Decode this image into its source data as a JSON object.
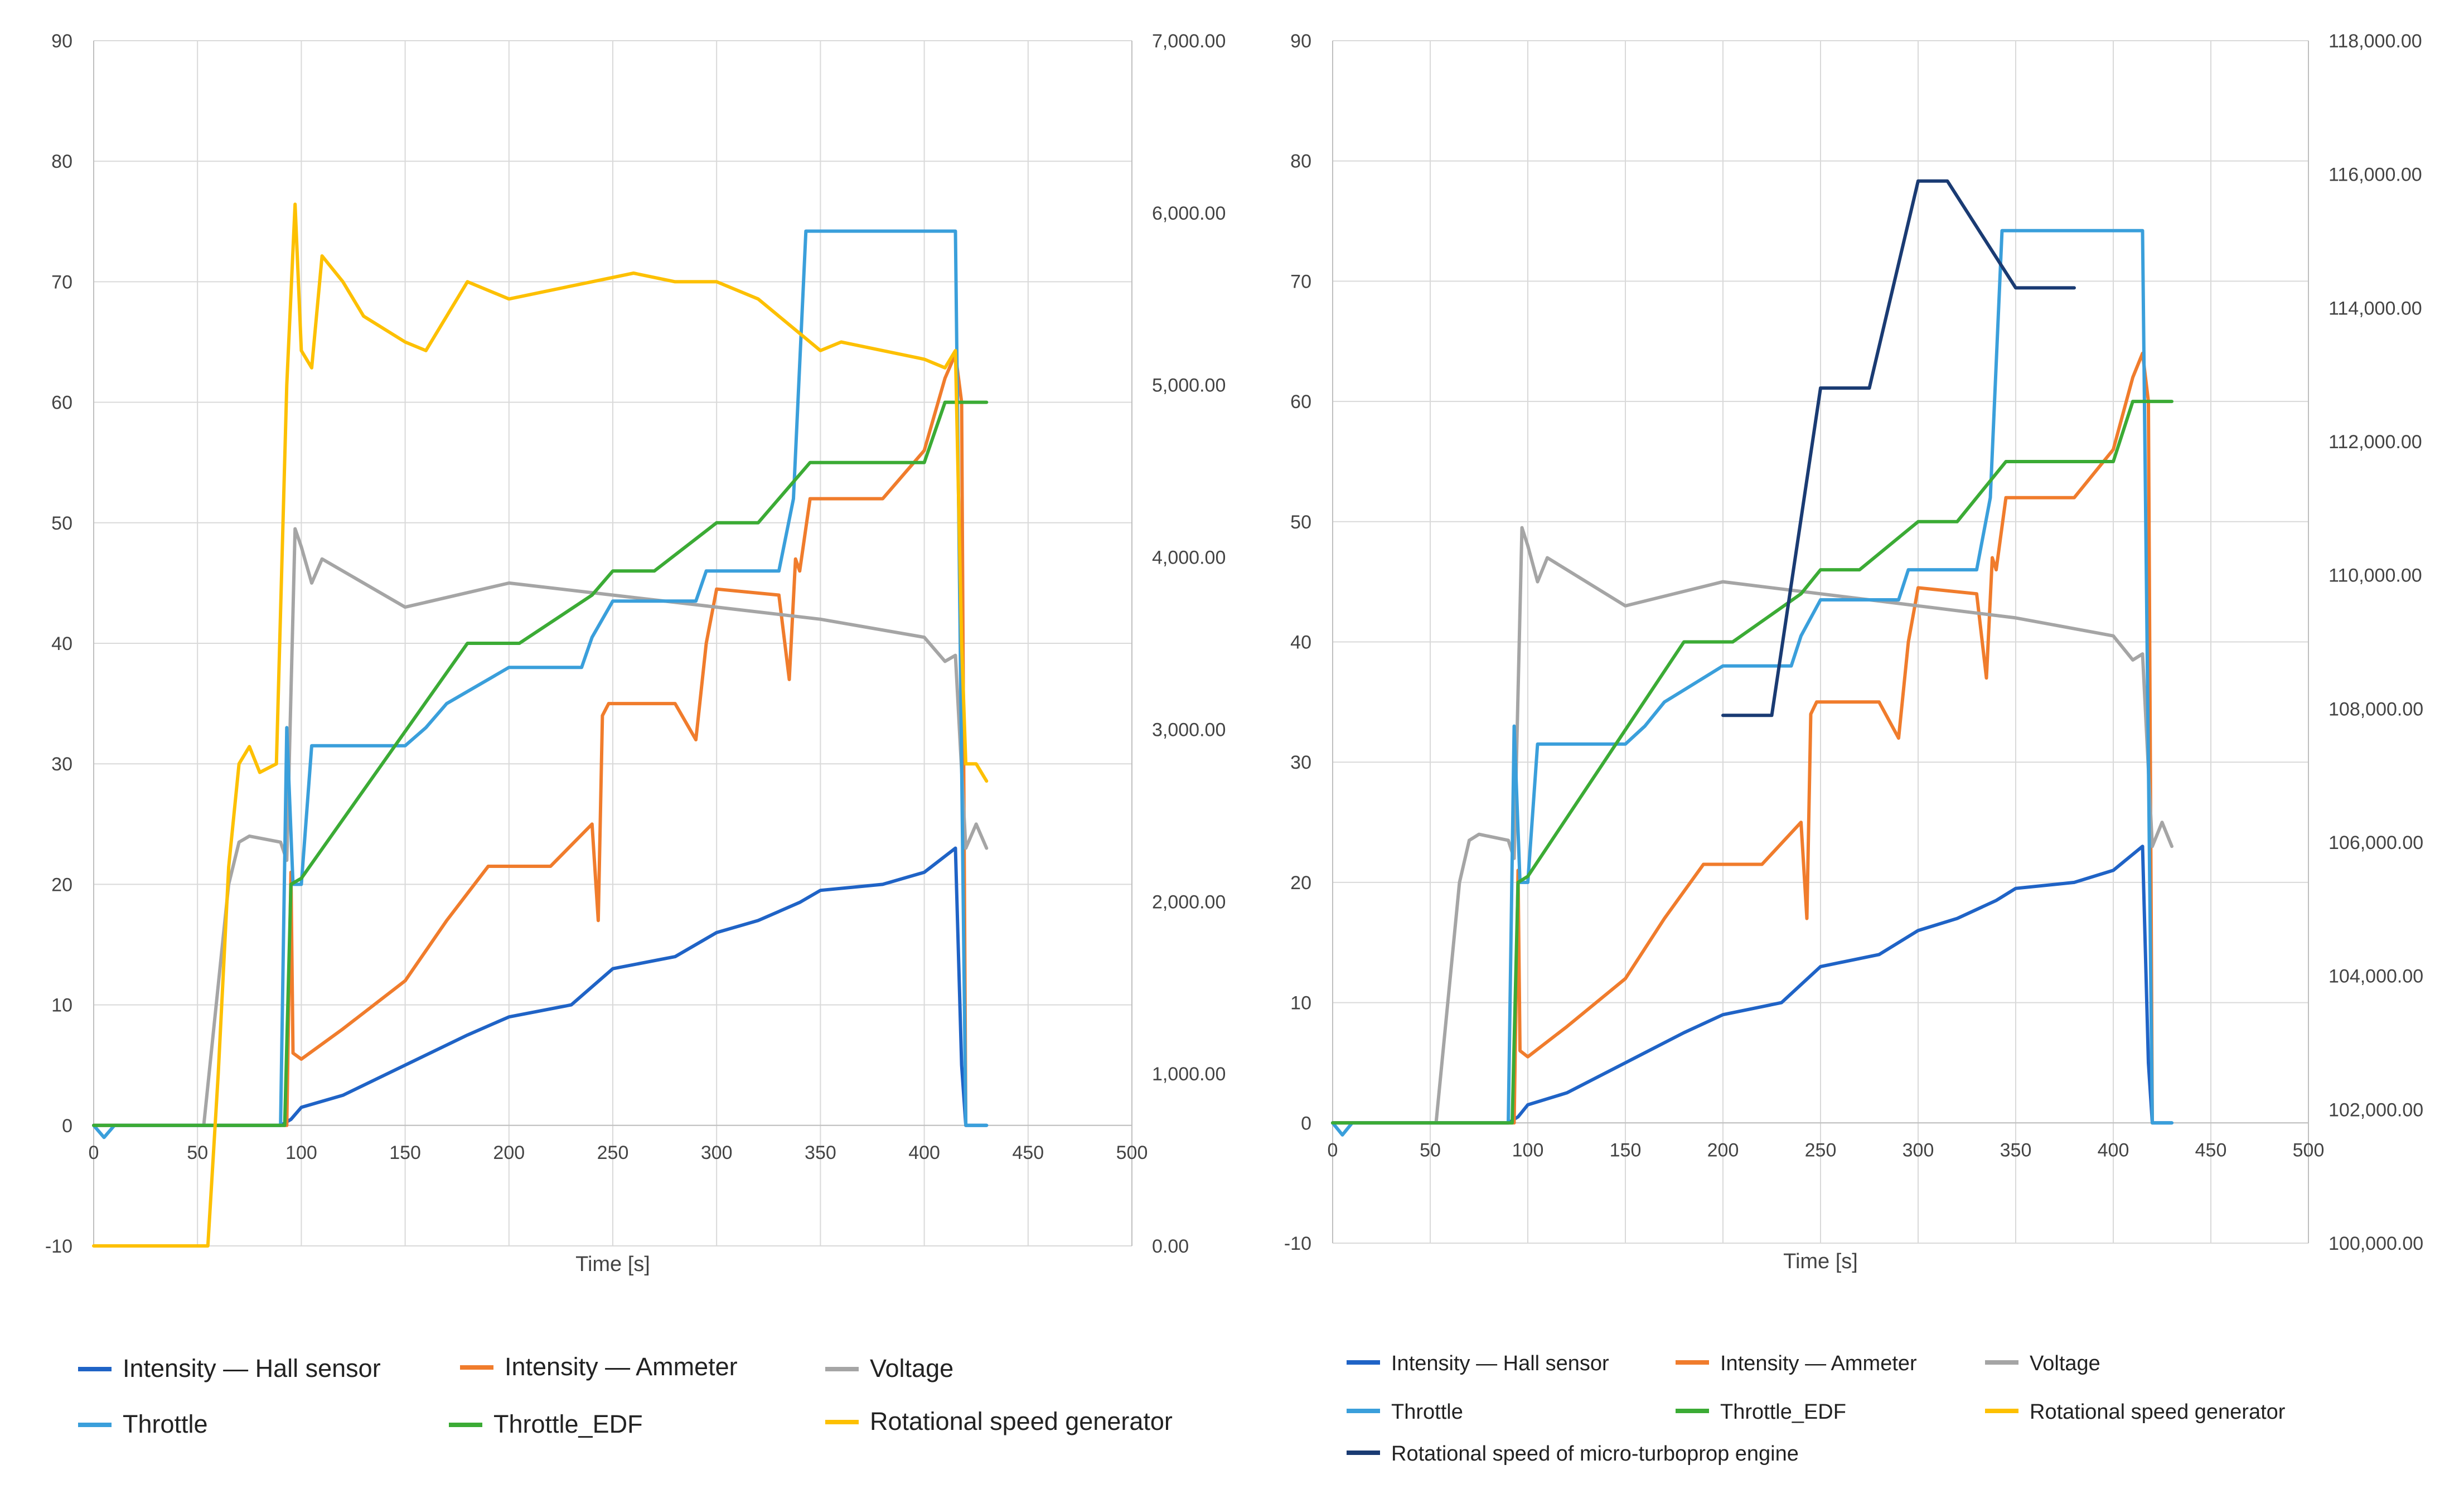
{
  "chart_data": [
    {
      "type": "line",
      "title": "",
      "xlabel": "Time [s]",
      "ylabel": "",
      "xlim": [
        0,
        500
      ],
      "ylim": [
        -10,
        90
      ],
      "y2lim": [
        0,
        7000
      ],
      "x_ticks": [
        "0",
        "50",
        "100",
        "150",
        "200",
        "250",
        "300",
        "350",
        "400",
        "450",
        "500"
      ],
      "y_ticks": [
        "-10",
        "0",
        "10",
        "20",
        "30",
        "40",
        "50",
        "60",
        "70",
        "80",
        "90"
      ],
      "y2_ticks": [
        "0.00",
        "1,000.00",
        "2,000.00",
        "3,000.00",
        "4,000.00",
        "5,000.00",
        "6,000.00",
        "7,000.00"
      ],
      "grid": true,
      "legend": [
        {
          "label": "Intensity — Hall sensor",
          "color": "#1f63c6"
        },
        {
          "label": "Intensity — Ammeter",
          "color": "#f07c2c"
        },
        {
          "label": "Voltage",
          "color": "#a5a5a5"
        },
        {
          "label": "Throttle",
          "color": "#3a9fdb"
        },
        {
          "label": "Throttle_EDF",
          "color": "#3bab35"
        },
        {
          "label": "Rotational speed generator",
          "color": "#fdc000"
        }
      ],
      "series": [
        {
          "name": "Intensity — Hall sensor",
          "axis": "y",
          "color": "#1f63c6",
          "x": [
            0,
            90,
            95,
            100,
            120,
            150,
            180,
            200,
            230,
            250,
            280,
            300,
            320,
            340,
            350,
            380,
            400,
            415,
            418,
            420,
            430
          ],
          "y": [
            0,
            0,
            0.5,
            1.5,
            2.5,
            5,
            7.5,
            9,
            10,
            13,
            14,
            16,
            17,
            18.5,
            19.5,
            20,
            21,
            23,
            5,
            0,
            0
          ]
        },
        {
          "name": "Intensity — Ammeter",
          "axis": "y",
          "color": "#f07c2c",
          "x": [
            0,
            93,
            95,
            96,
            100,
            120,
            150,
            170,
            190,
            220,
            240,
            243,
            245,
            248,
            250,
            280,
            290,
            295,
            300,
            330,
            335,
            338,
            340,
            345,
            380,
            400,
            405,
            410,
            415,
            418,
            420
          ],
          "y": [
            0,
            0,
            21,
            6,
            5.5,
            8,
            12,
            17,
            21.5,
            21.5,
            25,
            17,
            34,
            35,
            35,
            35,
            32,
            40,
            44.5,
            44,
            37,
            47,
            46,
            52,
            52,
            56,
            59,
            62,
            64,
            60,
            0
          ]
        },
        {
          "name": "Voltage",
          "axis": "y",
          "color": "#a5a5a5",
          "x": [
            0,
            53,
            65,
            70,
            75,
            90,
            93,
            97,
            100,
            105,
            110,
            150,
            200,
            250,
            300,
            350,
            400,
            410,
            415,
            420,
            425,
            430
          ],
          "y": [
            0,
            0,
            20,
            23.5,
            24,
            23.5,
            22,
            49.5,
            48,
            45,
            47,
            43,
            45,
            44,
            43,
            42,
            40.5,
            38.5,
            39,
            23,
            25,
            23
          ]
        },
        {
          "name": "Throttle",
          "axis": "y",
          "color": "#3a9fdb",
          "x": [
            0,
            5,
            10,
            90,
            93,
            96,
            100,
            105,
            150,
            160,
            170,
            180,
            190,
            200,
            235,
            240,
            250,
            290,
            295,
            330,
            337,
            343,
            415,
            418,
            420,
            430
          ],
          "y": [
            0,
            -1,
            0,
            0,
            33,
            20,
            20,
            31.5,
            31.5,
            33,
            35,
            36,
            37,
            38,
            38,
            40.5,
            43.5,
            43.5,
            46,
            46,
            52,
            74.2,
            74.2,
            30,
            0,
            0
          ]
        },
        {
          "name": "Throttle_EDF",
          "axis": "y",
          "color": "#3bab35",
          "x": [
            0,
            92,
            95,
            100,
            180,
            205,
            240,
            250,
            270,
            300,
            320,
            345,
            400,
            410,
            430
          ],
          "y": [
            0,
            0,
            20,
            20.5,
            40,
            40,
            44,
            46,
            46,
            50,
            50,
            55,
            55,
            60,
            60
          ]
        },
        {
          "name": "Rotational speed generator",
          "axis": "y2",
          "color": "#fdc000",
          "x": [
            0,
            55,
            60,
            65,
            70,
            75,
            80,
            88,
            93,
            97,
            100,
            105,
            110,
            120,
            130,
            150,
            160,
            180,
            200,
            220,
            240,
            260,
            280,
            300,
            320,
            340,
            350,
            360,
            380,
            400,
            410,
            415,
            418,
            420,
            425,
            430
          ],
          "y": [
            0,
            0,
            1000,
            2200,
            2800,
            2900,
            2750,
            2800,
            5000,
            6050,
            5200,
            5100,
            5750,
            5600,
            5400,
            5250,
            5200,
            5600,
            5500,
            5550,
            5600,
            5650,
            5600,
            5600,
            5500,
            5300,
            5200,
            5250,
            5200,
            5150,
            5100,
            5200,
            3500,
            2800,
            2800,
            2700
          ]
        }
      ]
    },
    {
      "type": "line",
      "title": "",
      "xlabel": "Time [s]",
      "ylabel": "",
      "xlim": [
        0,
        500
      ],
      "ylim": [
        -10,
        90
      ],
      "y2lim": [
        100000,
        118000
      ],
      "x_ticks": [
        "0",
        "50",
        "100",
        "150",
        "200",
        "250",
        "300",
        "350",
        "400",
        "450",
        "500"
      ],
      "y_ticks": [
        "-10",
        "0",
        "10",
        "20",
        "30",
        "40",
        "50",
        "60",
        "70",
        "80",
        "90"
      ],
      "y2_ticks": [
        "100,000.00",
        "102,000.00",
        "104,000.00",
        "106,000.00",
        "108,000.00",
        "110,000.00",
        "112,000.00",
        "114,000.00",
        "116,000.00",
        "118,000.00"
      ],
      "grid": true,
      "legend": [
        {
          "label": "Intensity — Hall sensor",
          "color": "#1f63c6"
        },
        {
          "label": "Intensity — Ammeter",
          "color": "#f07c2c"
        },
        {
          "label": "Voltage",
          "color": "#a5a5a5"
        },
        {
          "label": "Throttle",
          "color": "#3a9fdb"
        },
        {
          "label": "Throttle_EDF",
          "color": "#3bab35"
        },
        {
          "label": "Rotational speed generator",
          "color": "#fdc000"
        },
        {
          "label": "Rotational speed of micro-turboprop engine",
          "color": "#1a3b73"
        }
      ],
      "series": [
        {
          "name": "Intensity — Hall sensor",
          "axis": "y",
          "color": "#1f63c6",
          "x": [
            0,
            90,
            95,
            100,
            120,
            150,
            180,
            200,
            230,
            250,
            280,
            300,
            320,
            340,
            350,
            380,
            400,
            415,
            418,
            420,
            430
          ],
          "y": [
            0,
            0,
            0.5,
            1.5,
            2.5,
            5,
            7.5,
            9,
            10,
            13,
            14,
            16,
            17,
            18.5,
            19.5,
            20,
            21,
            23,
            5,
            0,
            0
          ]
        },
        {
          "name": "Intensity — Ammeter",
          "axis": "y",
          "color": "#f07c2c",
          "x": [
            0,
            93,
            95,
            96,
            100,
            120,
            150,
            170,
            190,
            220,
            240,
            243,
            245,
            248,
            250,
            280,
            290,
            295,
            300,
            330,
            335,
            338,
            340,
            345,
            380,
            400,
            405,
            410,
            415,
            418,
            420
          ],
          "y": [
            0,
            0,
            21,
            6,
            5.5,
            8,
            12,
            17,
            21.5,
            21.5,
            25,
            17,
            34,
            35,
            35,
            35,
            32,
            40,
            44.5,
            44,
            37,
            47,
            46,
            52,
            52,
            56,
            59,
            62,
            64,
            60,
            0
          ]
        },
        {
          "name": "Voltage",
          "axis": "y",
          "color": "#a5a5a5",
          "x": [
            0,
            53,
            65,
            70,
            75,
            90,
            93,
            97,
            100,
            105,
            110,
            150,
            200,
            250,
            300,
            350,
            400,
            410,
            415,
            420,
            425,
            430
          ],
          "y": [
            0,
            0,
            20,
            23.5,
            24,
            23.5,
            22,
            49.5,
            48,
            45,
            47,
            43,
            45,
            44,
            43,
            42,
            40.5,
            38.5,
            39,
            23,
            25,
            23
          ]
        },
        {
          "name": "Throttle",
          "axis": "y",
          "color": "#3a9fdb",
          "x": [
            0,
            5,
            10,
            90,
            93,
            96,
            100,
            105,
            150,
            160,
            170,
            180,
            190,
            200,
            235,
            240,
            250,
            290,
            295,
            330,
            337,
            343,
            415,
            418,
            420,
            430
          ],
          "y": [
            0,
            -1,
            0,
            0,
            33,
            20,
            20,
            31.5,
            31.5,
            33,
            35,
            36,
            37,
            38,
            38,
            40.5,
            43.5,
            43.5,
            46,
            46,
            52,
            74.2,
            74.2,
            30,
            0,
            0
          ]
        },
        {
          "name": "Throttle_EDF",
          "axis": "y",
          "color": "#3bab35",
          "x": [
            0,
            92,
            95,
            100,
            180,
            205,
            240,
            250,
            270,
            300,
            320,
            345,
            400,
            410,
            430
          ],
          "y": [
            0,
            0,
            20,
            20.5,
            40,
            40,
            44,
            46,
            46,
            50,
            50,
            55,
            55,
            60,
            60
          ]
        },
        {
          "name": "Rotational speed of micro-turboprop engine",
          "axis": "y2",
          "color": "#1a3b73",
          "x": [
            200,
            225,
            250,
            275,
            300,
            315,
            350,
            380
          ],
          "y": [
            107900,
            107900,
            112800,
            112800,
            115900,
            115900,
            114300,
            114300
          ]
        }
      ]
    }
  ]
}
